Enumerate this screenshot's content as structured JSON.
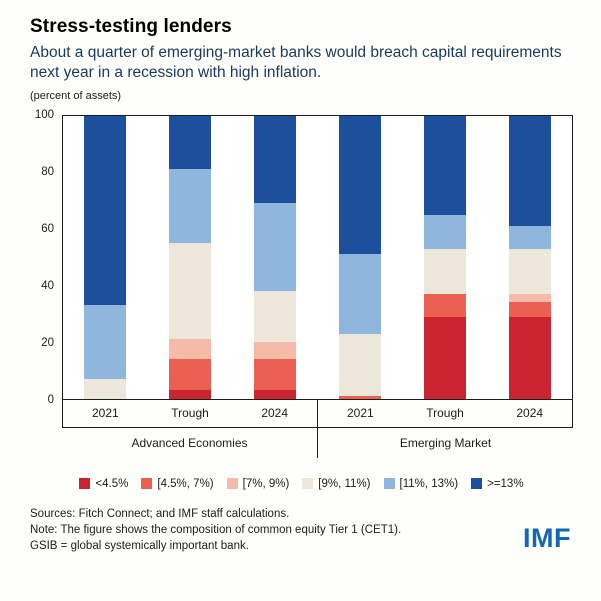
{
  "header": {
    "title": "Stress-testing lenders",
    "subtitle": "About a quarter of emerging-market banks would breach capital requirements next year in a recession with high inflation.",
    "unit": "(percent of assets)"
  },
  "chart_data": {
    "type": "bar",
    "stacked": true,
    "title": "Stress-testing lenders",
    "xlabel": "",
    "ylabel": "percent of assets",
    "ylim": [
      0,
      100
    ],
    "yticks": [
      0,
      20,
      40,
      60,
      80,
      100
    ],
    "grid": false,
    "legend_position": "bottom",
    "groups": [
      "Advanced Economies",
      "Emerging Market"
    ],
    "categories": [
      "2021",
      "Trough",
      "2024",
      "2021",
      "Trough",
      "2024"
    ],
    "series": [
      {
        "name": "<4.5%",
        "color": "#c9242f",
        "values": [
          0,
          3,
          3,
          0,
          29,
          29
        ]
      },
      {
        "name": "[4.5%, 7%)",
        "color": "#ea6153",
        "values": [
          0,
          11,
          11,
          1,
          8,
          5
        ]
      },
      {
        "name": "[7%, 9%)",
        "color": "#f6bba8",
        "values": [
          0,
          7,
          6,
          0,
          0,
          3
        ]
      },
      {
        "name": "[9%, 11%)",
        "color": "#ece7da",
        "values": [
          7,
          34,
          18,
          22,
          16,
          16
        ]
      },
      {
        "name": "[11%, 13%)",
        "color": "#8fb7de",
        "values": [
          26,
          26,
          31,
          28,
          12,
          8
        ]
      },
      {
        "name": ">=13%",
        "color": "#1c4f9c",
        "values": [
          67,
          19,
          31,
          49,
          35,
          39
        ]
      }
    ]
  },
  "footer": {
    "sources": "Sources: Fitch Connect; and IMF staff calculations.",
    "note": "Note: The figure shows the composition of common equity Tier 1 (CET1).",
    "gsib": "GSIB = global systemically important bank.",
    "logo": "IMF"
  }
}
